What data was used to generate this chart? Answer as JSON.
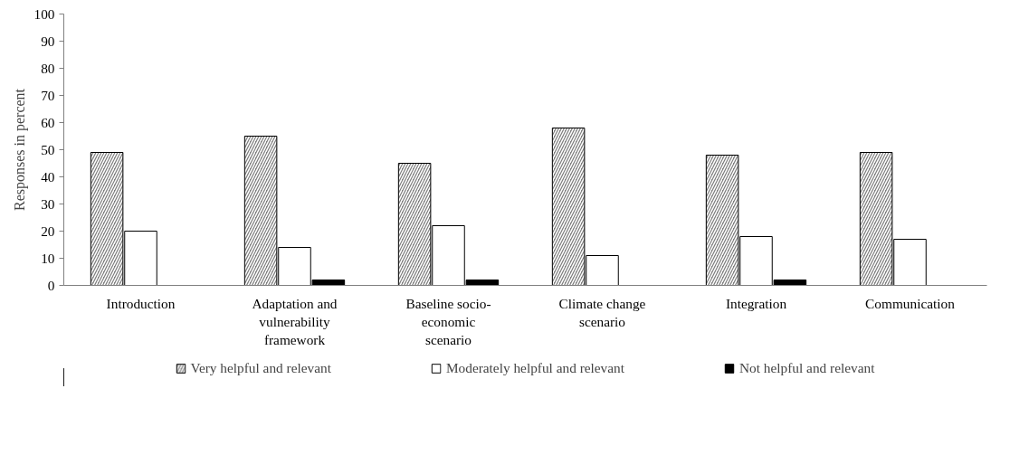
{
  "chart_data": {
    "type": "bar",
    "ylabel": "Responses in percent",
    "categories": [
      "Introduction",
      "Adaptation and vulnerability framework",
      "Baseline socio-economic scenario",
      "Climate change scenario",
      "Integration",
      "Communication"
    ],
    "series": [
      {
        "name": "Very helpful and relevant",
        "color": "#7f7f7f",
        "values": [
          49,
          55,
          45,
          58,
          48,
          49
        ]
      },
      {
        "name": "Moderately helpful and relevant",
        "color": "#ffffff",
        "values": [
          20,
          14,
          22,
          11,
          18,
          17
        ]
      },
      {
        "name": "Not helpful and relevant",
        "color": "#000000",
        "values": [
          0,
          2,
          2,
          0,
          2,
          0
        ]
      }
    ],
    "ylim": [
      0,
      100
    ],
    "yticks": [
      0,
      10,
      20,
      30,
      40,
      50,
      60,
      70,
      80,
      90,
      100
    ],
    "grid": false,
    "legend": "bottom"
  }
}
